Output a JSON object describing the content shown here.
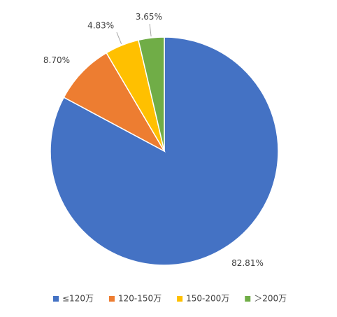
{
  "chart_data": {
    "type": "pie",
    "categories": [
      "≤120万",
      "120-150万",
      "150-200万",
      "＞200万"
    ],
    "values": [
      82.81,
      8.7,
      4.83,
      3.65
    ],
    "value_labels": [
      "82.81%",
      "8.70%",
      "4.83%",
      "3.65%"
    ],
    "colors": [
      "#4472c4",
      "#ed7d31",
      "#ffc000",
      "#70ad47"
    ],
    "legend": "bottom"
  }
}
